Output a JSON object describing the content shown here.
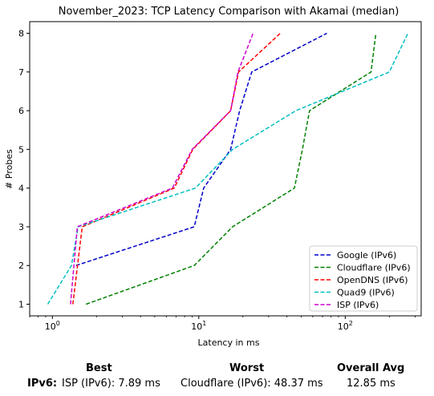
{
  "chart_data": {
    "type": "line",
    "title": "November_2023: TCP Latency Comparison with Akamai (median)",
    "xlabel": "Latency in ms",
    "ylabel": "# Probes",
    "xscale": "log",
    "xlim": [
      0.7,
      330
    ],
    "ylim": [
      0.7,
      8.3
    ],
    "xticks": [
      {
        "value": 1,
        "label": "10^0"
      },
      {
        "value": 10,
        "label": "10^1"
      },
      {
        "value": 100,
        "label": "10^2"
      }
    ],
    "yticks": [
      1,
      2,
      3,
      4,
      5,
      6,
      7,
      8
    ],
    "legend_position": "lower-right",
    "grid": false,
    "series": [
      {
        "name": "Google (IPv6)",
        "color": "#0000cc",
        "dash": "dashed",
        "points": [
          [
            1.45,
            2
          ],
          [
            9.3,
            3
          ],
          [
            10.8,
            4
          ],
          [
            16.5,
            5
          ],
          [
            19,
            6
          ],
          [
            23,
            7
          ],
          [
            75,
            8
          ]
        ]
      },
      {
        "name": "Cloudflare (IPv6)",
        "color": "#008000",
        "dash": "dashed",
        "points": [
          [
            1.7,
            1
          ],
          [
            9.3,
            2
          ],
          [
            17,
            3
          ],
          [
            45,
            4
          ],
          [
            51,
            5
          ],
          [
            57,
            6
          ],
          [
            150,
            7
          ],
          [
            162,
            8
          ]
        ]
      },
      {
        "name": "OpenDNS (IPv6)",
        "color": "#ff0000",
        "dash": "dashed",
        "points": [
          [
            1.38,
            1
          ],
          [
            1.6,
            3
          ],
          [
            6.8,
            4
          ],
          [
            9.1,
            5
          ],
          [
            16.5,
            6
          ],
          [
            18.7,
            7
          ],
          [
            36,
            8
          ]
        ]
      },
      {
        "name": "Quad9 (IPv6)",
        "color": "#00bfbf",
        "dash": "dashed",
        "points": [
          [
            0.93,
            1
          ],
          [
            1.35,
            2
          ],
          [
            1.5,
            3
          ],
          [
            9.5,
            4
          ],
          [
            17,
            5
          ],
          [
            46,
            6
          ],
          [
            200,
            7
          ],
          [
            268,
            8
          ]
        ]
      },
      {
        "name": "ISP (IPv6)",
        "color": "#cc00cc",
        "dash": "dashed",
        "points": [
          [
            1.33,
            1
          ],
          [
            1.48,
            3
          ],
          [
            6.6,
            4
          ],
          [
            9.0,
            5
          ],
          [
            16.5,
            6
          ],
          [
            18.5,
            7
          ],
          [
            23.5,
            8
          ]
        ]
      }
    ]
  },
  "summary": {
    "best_header": "Best",
    "worst_header": "Worst",
    "avg_header": "Overall Avg",
    "row_label": "IPv6:",
    "best_value": "ISP (IPv6): 7.89 ms",
    "worst_value": "Cloudflare (IPv6): 48.37 ms",
    "avg_value": "12.85 ms"
  }
}
